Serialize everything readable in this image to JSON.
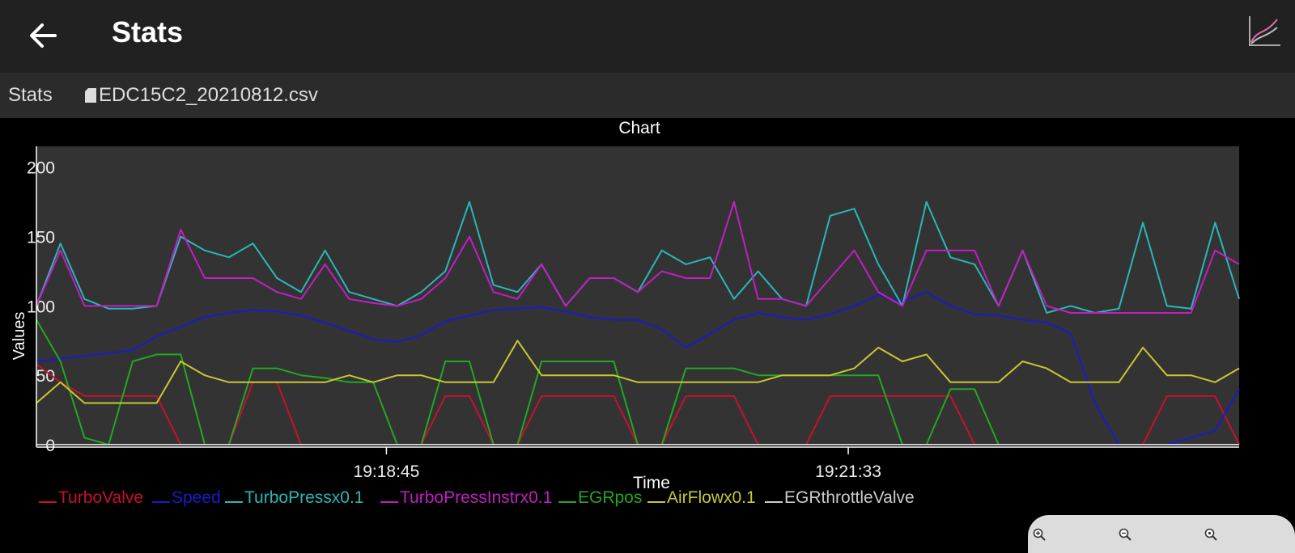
{
  "appbar": {
    "title": "Stats",
    "back_icon": "arrow-left-icon",
    "chart_icon": "line-chart-icon"
  },
  "subbar": {
    "label": "Stats",
    "file_icon": "sd-card-icon",
    "file_name": "EDC15C2_20210812.csv"
  },
  "zoom_controls": [
    {
      "icon": "zoom-in-icon"
    },
    {
      "icon": "zoom-out-icon"
    },
    {
      "icon": "zoom-reset-icon"
    }
  ],
  "colors": {
    "plot_bg": "#333333",
    "appbar_bg": "#212121",
    "subbar_bg": "#2b2b2b"
  },
  "chart_data": {
    "type": "line",
    "title": "Chart",
    "xlabel": "Time",
    "ylabel": "Values",
    "ylim": [
      0,
      215
    ],
    "yticks": [
      0,
      50,
      100,
      150,
      200
    ],
    "xticks": [
      "19:18:45",
      "19:21:33"
    ],
    "grid": false,
    "legend_position": "bottom",
    "x": [
      0,
      2,
      4,
      6,
      8,
      10,
      12,
      14,
      16,
      18,
      20,
      22,
      24,
      26,
      28,
      30,
      32,
      34,
      36,
      38,
      40,
      42,
      44,
      46,
      48,
      50,
      52,
      54,
      56,
      58,
      60,
      62,
      64,
      66,
      68,
      70,
      72,
      74,
      76,
      78,
      80,
      82,
      84,
      86,
      88,
      90,
      92,
      94,
      96,
      98,
      100
    ],
    "series": [
      {
        "name": "TurboValve",
        "color": "#c8102e",
        "values": [
          58,
          45,
          35,
          35,
          35,
          35,
          0,
          0,
          0,
          45,
          45,
          0,
          0,
          0,
          0,
          0,
          0,
          35,
          35,
          0,
          0,
          35,
          35,
          35,
          35,
          0,
          0,
          35,
          35,
          35,
          0,
          0,
          0,
          35,
          35,
          35,
          35,
          35,
          35,
          0,
          0,
          0,
          0,
          0,
          0,
          0,
          0,
          35,
          35,
          35,
          0
        ]
      },
      {
        "name": "Speed",
        "color": "#1a1acc",
        "values": [
          60,
          62,
          64,
          66,
          68,
          78,
          85,
          92,
          95,
          97,
          96,
          93,
          88,
          82,
          76,
          74,
          79,
          89,
          93,
          97,
          98,
          99,
          96,
          92,
          90,
          90,
          83,
          70,
          80,
          90,
          95,
          92,
          90,
          94,
          100,
          108,
          103,
          110,
          100,
          94,
          93,
          90,
          88,
          80,
          30,
          0,
          0,
          0,
          5,
          10,
          40
        ]
      },
      {
        "name": "TurboPressx0.1",
        "color": "#2ab7b7",
        "values": [
          100,
          145,
          105,
          98,
          98,
          100,
          150,
          140,
          135,
          145,
          120,
          110,
          140,
          110,
          105,
          100,
          110,
          125,
          175,
          115,
          110,
          130,
          100,
          120,
          120,
          110,
          140,
          130,
          135,
          105,
          125,
          105,
          100,
          165,
          170,
          130,
          100,
          175,
          135,
          130,
          100,
          140,
          95,
          100,
          95,
          98,
          160,
          100,
          98,
          160,
          105
        ]
      },
      {
        "name": "TurboPressInstrx0.1",
        "color": "#c21ec2",
        "values": [
          100,
          140,
          100,
          100,
          100,
          100,
          155,
          120,
          120,
          120,
          110,
          105,
          130,
          105,
          102,
          100,
          105,
          120,
          150,
          110,
          105,
          130,
          100,
          120,
          120,
          110,
          125,
          120,
          120,
          175,
          105,
          105,
          100,
          120,
          140,
          110,
          100,
          140,
          140,
          140,
          100,
          140,
          100,
          95,
          95,
          95,
          95,
          95,
          95,
          140,
          130
        ]
      },
      {
        "name": "EGRpos",
        "color": "#22a822",
        "values": [
          90,
          60,
          5,
          0,
          60,
          65,
          65,
          0,
          0,
          55,
          55,
          50,
          48,
          45,
          45,
          0,
          0,
          60,
          60,
          0,
          0,
          60,
          60,
          60,
          60,
          0,
          0,
          55,
          55,
          55,
          50,
          50,
          50,
          50,
          50,
          50,
          0,
          0,
          40,
          40,
          0,
          0,
          0,
          0,
          0,
          0,
          0,
          0,
          0,
          0,
          0
        ]
      },
      {
        "name": "AirFlowx0.1",
        "color": "#c8c832",
        "values": [
          30,
          45,
          30,
          30,
          30,
          30,
          60,
          50,
          45,
          45,
          45,
          45,
          45,
          50,
          45,
          50,
          50,
          45,
          45,
          45,
          75,
          50,
          50,
          50,
          50,
          45,
          45,
          45,
          45,
          45,
          45,
          50,
          50,
          50,
          55,
          70,
          60,
          65,
          45,
          45,
          45,
          60,
          55,
          45,
          45,
          45,
          70,
          50,
          50,
          45,
          55
        ]
      },
      {
        "name": "EGRthrottleValve",
        "color": "#cccccc",
        "values": [
          0,
          0,
          0,
          0,
          0,
          0,
          0,
          0,
          0,
          0,
          0,
          0,
          0,
          0,
          0,
          0,
          0,
          0,
          0,
          0,
          0,
          0,
          0,
          0,
          0,
          0,
          0,
          0,
          0,
          0,
          0,
          0,
          0,
          0,
          0,
          0,
          0,
          0,
          0,
          0,
          0,
          0,
          0,
          0,
          0,
          0,
          0,
          0,
          0,
          0,
          0
        ]
      }
    ]
  }
}
